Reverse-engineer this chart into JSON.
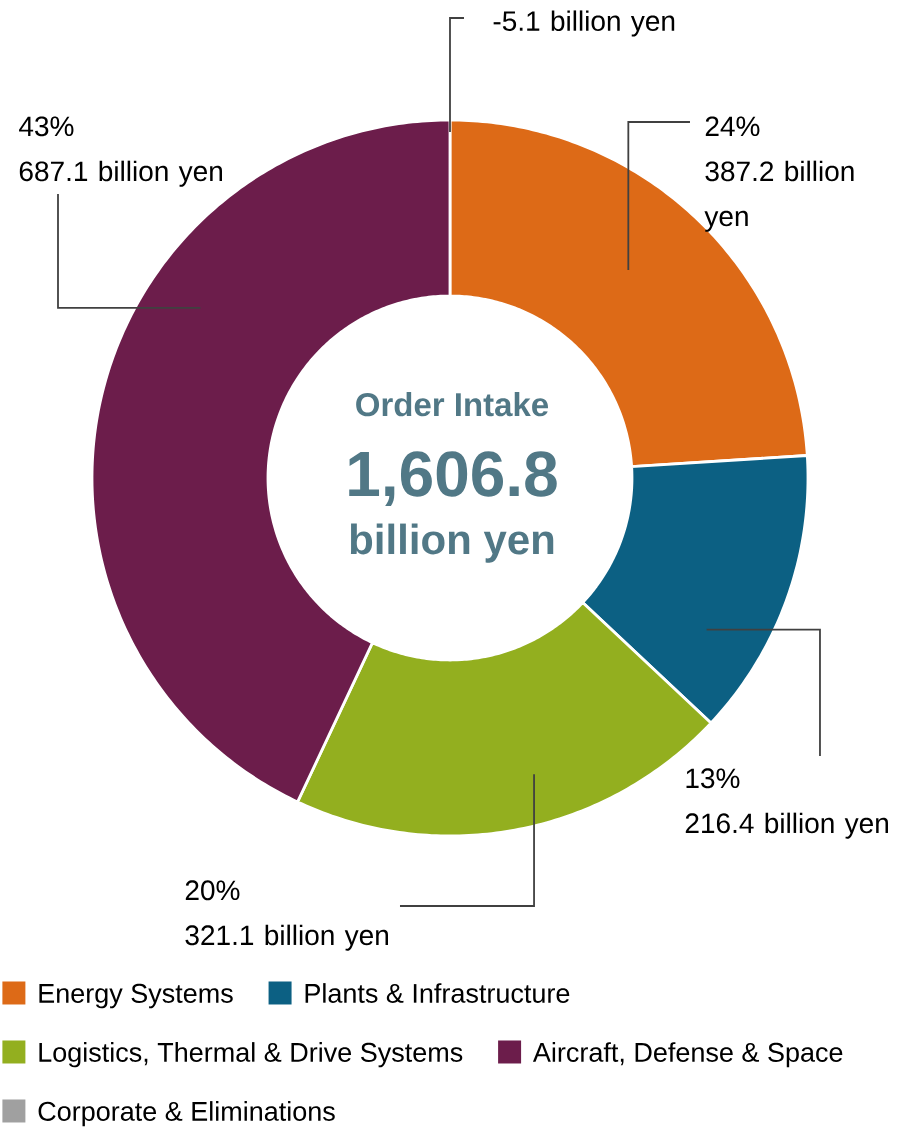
{
  "chart_data": {
    "type": "donut",
    "title": "Order Intake",
    "annotations": [
      "1,606.8",
      "billion yen"
    ],
    "categories": [
      "Energy Systems",
      "Plants & Infrastructure",
      "Logistics, Thermal & Drive Systems",
      "Aircraft, Defense & Space",
      "Corporate & Eliminations"
    ],
    "values": [
      24,
      13,
      20,
      43,
      null
    ],
    "colors": [
      "#dd6a17",
      "#0c6083",
      "#93af1f",
      "#6c1d4b",
      "#a0a0a0"
    ],
    "value_labels": [
      "24%\n387.2 billion yen",
      "13%\n216.4 billion yen",
      "20%\n321.1 billion yen",
      "43%\n687.1 billion yen",
      "-5.1 billion yen"
    ],
    "legend": "bottom"
  }
}
